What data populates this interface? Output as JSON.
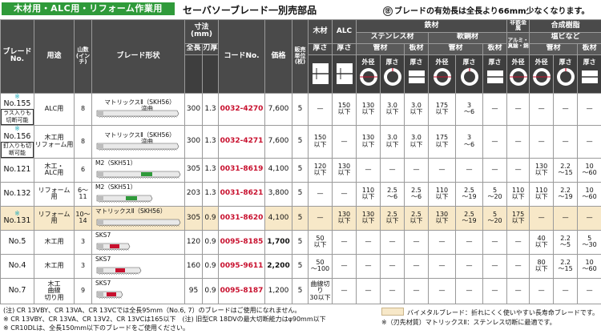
{
  "header": {
    "tag": "木材用・ALC用・リフォーム作業用",
    "title": "セーバソーブレード一別売部品",
    "note_mark": "㊟",
    "note": "ブレードの有効長は全長より66mm少なくなります。"
  },
  "columns": {
    "blade_no": "ブレード\nNo.",
    "use": "用途",
    "teeth": "山数\n(インチ)",
    "shape": "ブレード形状",
    "dims": "寸法(mm)",
    "length": "全長",
    "thickness": "刃厚",
    "code": "コードNo.",
    "price": "価格",
    "units": "販売\n単位\n(枚)",
    "wood": "木材",
    "alc": "ALC",
    "steel": "鉄材",
    "stainless": "ステンレス材",
    "mild": "軟鋼材",
    "nonferrous": "非鉄金属",
    "alumi": "アルミ・\n真鍮・銅",
    "synthetic": "合成樹脂",
    "pvc": "塩ビなど",
    "pipe": "管材",
    "plate": "板材",
    "thick": "厚さ",
    "outer": "外径"
  },
  "rows": [
    {
      "star": "※",
      "no": "No.155",
      "pill": "ラス入りも切断可能",
      "use": "ALC用",
      "teeth": "8",
      "blade_label": "マトリックスⅡ（SKH56）",
      "blade_bend": "湾曲",
      "length": "300",
      "thick": "1.3",
      "code": "0032-4270",
      "price": "7,600",
      "units": "5",
      "wood": "—",
      "alc": "150\n以下",
      "ss_od": "130\n以下",
      "ss_t": "3.0\n以下",
      "ss_plate": "3.0\n以下",
      "mild_od": "175\n以下",
      "mild_t": "3\n～6",
      "mild_plate": "—",
      "alu": "—",
      "pvc_od": "—",
      "pvc_t": "—",
      "pvc_plate": "—",
      "mild_star": true,
      "hl": false
    },
    {
      "star": "※",
      "no": "No.156",
      "pill": "釘入りも切断可能",
      "use": "木工用\nリフォーム用",
      "teeth": "8",
      "blade_label": "マトリックスⅡ（SKH56）",
      "blade_bend": "湾曲",
      "length": "300",
      "thick": "1.3",
      "code": "0032-4271",
      "price": "7,600",
      "units": "5",
      "wood": "150\n以下",
      "alc": "—",
      "ss_od": "130\n以下",
      "ss_t": "3.0\n以下",
      "ss_plate": "3.0\n以下",
      "mild_od": "175\n以下",
      "mild_t": "3\n～6",
      "mild_plate": "—",
      "alu": "—",
      "pvc_od": "—",
      "pvc_t": "—",
      "pvc_plate": "—",
      "mild_star": true,
      "hl": false
    },
    {
      "star": "",
      "no": "No.121",
      "pill": "",
      "use": "木工・\nALC用",
      "teeth": "6",
      "blade_label": "M2（SKH51）",
      "blade_bend": "",
      "length": "305",
      "thick": "1.3",
      "code": "0031-8619",
      "price": "4,100",
      "units": "5",
      "wood": "120\n以下",
      "alc": "130\n以下",
      "ss_od": "—",
      "ss_t": "—",
      "ss_plate": "—",
      "mild_od": "—",
      "mild_t": "—",
      "mild_plate": "—",
      "alu": "—",
      "pvc_od": "130\n以下",
      "pvc_t": "2.2\n～15",
      "pvc_plate": "10\n～60",
      "mild_star": false,
      "hl": false
    },
    {
      "star": "",
      "no": "No.132",
      "pill": "",
      "use": "リフォーム\n用",
      "teeth": "6～\n11",
      "blade_label": "M2（SKH51）",
      "blade_bend": "",
      "length": "203",
      "thick": "1.3",
      "code": "0031-8621",
      "price": "3,800",
      "units": "5",
      "wood": "—",
      "alc": "—",
      "ss_od": "110\n以下",
      "ss_t": "2.5\n～6",
      "ss_plate": "2.5\n～6",
      "mild_od": "110\n以下",
      "mild_t": "2.5\n～19",
      "mild_plate": "5\n～20",
      "alu": "110\n以下",
      "pvc_od": "110\n以下",
      "pvc_t": "2.2\n～19",
      "pvc_plate": "10\n～60",
      "mild_star": false,
      "hl": false
    },
    {
      "star": "※",
      "no": "No.131",
      "pill": "",
      "use": "リフォーム\n用",
      "teeth": "10～\n14",
      "blade_label": "マトリックスⅡ（SKH56）",
      "blade_bend": "",
      "length": "305",
      "thick": "0.9",
      "code": "0031-8620",
      "price": "4,100",
      "units": "5",
      "wood": "—",
      "alc": "130\n以下",
      "ss_od": "130\n以下",
      "ss_t": "2.5\n以下",
      "ss_plate": "2.5\n以下",
      "mild_od": "130\n以下",
      "mild_t": "2.5\n～19",
      "mild_plate": "5\n～20",
      "alu": "175\n以下",
      "pvc_od": "—",
      "pvc_t": "—",
      "pvc_plate": "—",
      "mild_star": true,
      "hl": true
    },
    {
      "star": "",
      "no": "No.5",
      "pill": "",
      "use": "木工用",
      "teeth": "3",
      "blade_label": "SKS7",
      "blade_bend": "",
      "length": "120",
      "thick": "0.9",
      "code": "0095-8185",
      "price": "1,700",
      "units": "5",
      "wood": "50\n以下",
      "alc": "—",
      "ss_od": "—",
      "ss_t": "—",
      "ss_plate": "—",
      "mild_od": "—",
      "mild_t": "—",
      "mild_plate": "—",
      "alu": "—",
      "pvc_od": "40\n以下",
      "pvc_t": "2.2\n～5",
      "pvc_plate": "5\n～30",
      "mild_star": false,
      "hl": false
    },
    {
      "star": "",
      "no": "No.4",
      "pill": "",
      "use": "木工用",
      "teeth": "3",
      "blade_label": "SKS7",
      "blade_bend": "",
      "length": "160",
      "thick": "0.9",
      "code": "0095-9611",
      "price": "2,200",
      "units": "5",
      "wood": "50\n～100",
      "alc": "—",
      "ss_od": "—",
      "ss_t": "—",
      "ss_plate": "—",
      "mild_od": "—",
      "mild_t": "—",
      "mild_plate": "—",
      "alu": "—",
      "pvc_od": "80\n以下",
      "pvc_t": "2.2\n～15",
      "pvc_plate": "10\n～60",
      "mild_star": false,
      "hl": false
    },
    {
      "star": "",
      "no": "No.7",
      "pill": "",
      "use": "木工\n曲線\n切り用",
      "teeth": "9",
      "blade_label": "SKS7",
      "blade_bend": "",
      "length": "95",
      "thick": "0.9",
      "code": "0095-8187",
      "price": "1,200",
      "units": "5",
      "wood": "曲線切り\n30以下",
      "alc": "—",
      "ss_od": "—",
      "ss_t": "—",
      "ss_plate": "—",
      "mild_od": "—",
      "mild_t": "—",
      "mild_plate": "—",
      "alu": "—",
      "pvc_od": "—",
      "pvc_t": "—",
      "pvc_plate": "—",
      "mild_star": false,
      "hl": false
    }
  ],
  "footer": {
    "note1": "(注) CR 13VBY、CR 13VA、CR 13VCでは全長95mm（No.6, 7）のブレードはご使用になれません。",
    "note2": "※ CR 13VBY、CR 13VA、CR 13V2、CR 13VCは165以下　(注) 旧型CR 18DVの最大切断能力はφ90mm以下",
    "note3": "※ CR10DLは、全長150mm以下のブレードをご使用ください。",
    "legend1": "バイメタルブレード：折れにくく使いやすい長寿命ブレードです。",
    "legend2": "※（刃先材質）マトリックスⅡ：ステンレス切断に最適です。"
  },
  "colors": {
    "accent_green": "#2f9a3a",
    "code_red": "#c8102e",
    "header_dark": "#4a4a4a",
    "highlight": "#f7e8c8",
    "star_teal": "#1aa9b8"
  }
}
